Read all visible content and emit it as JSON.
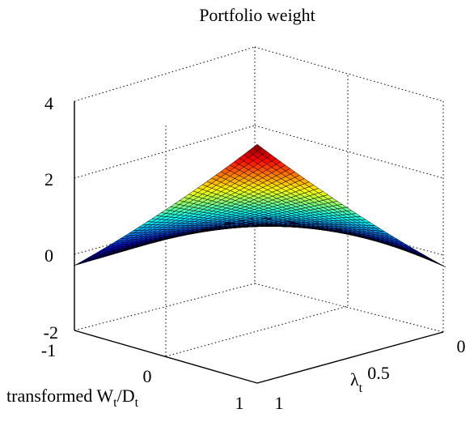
{
  "chart_data": {
    "type": "surface",
    "title": "Portfolio weight",
    "xlabel": "transformed W",
    "xlabel_sub1": "t",
    "xlabel_sep": "/D",
    "xlabel_sub2": "t",
    "ylabel": "λ",
    "ylabel_sub": "t",
    "zlim": [
      -2,
      4
    ],
    "z_ticks": [
      "-2",
      "0",
      "2",
      "4"
    ],
    "x_ticks": [
      "-1",
      "0",
      "1"
    ],
    "y_ticks": [
      "1",
      "0.5",
      "0"
    ],
    "grid": true,
    "colormap": "jet",
    "x_range": [
      -1,
      1
    ],
    "y_range": [
      0,
      1
    ],
    "corners": {
      "x_min_y_min": -0.2,
      "x_max_y_min": -0.3,
      "x_min_y_max": -0.3,
      "x_max_y_max": 4.0
    }
  }
}
